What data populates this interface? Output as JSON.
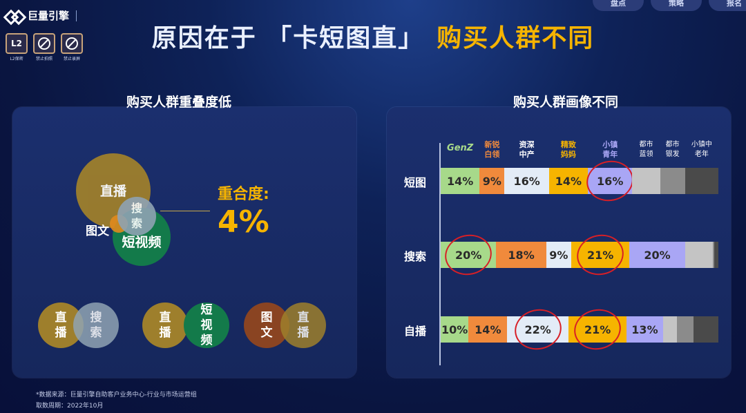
{
  "brand": {
    "name": "巨量引擎"
  },
  "badges": [
    {
      "icon": "L2",
      "caption": "L2保密"
    },
    {
      "icon": "no-photo-icon",
      "caption": "禁止拍照"
    },
    {
      "icon": "no-record-icon",
      "caption": "禁止录屏"
    }
  ],
  "nav": [
    "盘点",
    "策略",
    "报名"
  ],
  "title": {
    "white": "原因在于 「卡短图直」",
    "highlight": "购买人群不同"
  },
  "left_panel": {
    "title": "购买人群重叠度低",
    "venn": {
      "zhibo": "直播",
      "sousuo": "搜索",
      "tuwen": "图文",
      "duanshipin": "短视频"
    },
    "overlap_label": "重合度:",
    "overlap_value": "4%",
    "pairs": [
      {
        "a": "直播",
        "b": "搜索"
      },
      {
        "a": "直播",
        "b": "短视频"
      },
      {
        "a": "图文",
        "b": "直播"
      }
    ]
  },
  "right_panel": {
    "title": "购买人群画像不同"
  },
  "footer": {
    "source": "*数据来源：巨量引擎自助客户业务中心-行业与市场运营组",
    "period": "取数周期：2022年10月"
  },
  "chart_data": {
    "type": "bar",
    "stacked": true,
    "orientation": "horizontal",
    "categories": [
      "短图",
      "搜索",
      "自播"
    ],
    "series": [
      {
        "name": "GenZ",
        "color": "#a7d98a",
        "values": [
          14,
          20,
          10
        ]
      },
      {
        "name": "新锐白领",
        "color": "#f08a3c",
        "values": [
          9,
          18,
          14
        ]
      },
      {
        "name": "资深中产",
        "color": "#e3ecf7",
        "values": [
          16,
          9,
          22
        ]
      },
      {
        "name": "精致妈妈",
        "color": "#f6b400",
        "values": [
          14,
          21,
          21
        ]
      },
      {
        "name": "小镇青年",
        "color": "#a9a6f5",
        "values": [
          16,
          20,
          13
        ]
      },
      {
        "name": "都市蓝领",
        "color": "#c4c4c4",
        "values": [
          10,
          10,
          5
        ]
      },
      {
        "name": "都市银发",
        "color": "#8b8b8b",
        "values": [
          9,
          0.5,
          6
        ]
      },
      {
        "name": "小镇中老年",
        "color": "#4a4a4a",
        "values": [
          12,
          1.5,
          9
        ]
      }
    ],
    "data_labels": [
      [
        "14%",
        "9%",
        "16%",
        "14%",
        "16%",
        "",
        "",
        ""
      ],
      [
        "20%",
        "18%",
        "9%",
        "21%",
        "20%",
        "",
        "",
        ""
      ],
      [
        "10%",
        "14%",
        "22%",
        "21%",
        "13%",
        "",
        "",
        ""
      ]
    ],
    "legend_label_colors": [
      "#a7d98a",
      "#f08a3c",
      "#ffffff",
      "#f6b400",
      "#a9a6f5",
      "#ffffff",
      "#ffffff",
      "#ffffff"
    ],
    "highlighted": [
      [
        0,
        4
      ],
      [
        1,
        0
      ],
      [
        1,
        3
      ],
      [
        2,
        2
      ],
      [
        2,
        3
      ]
    ]
  }
}
